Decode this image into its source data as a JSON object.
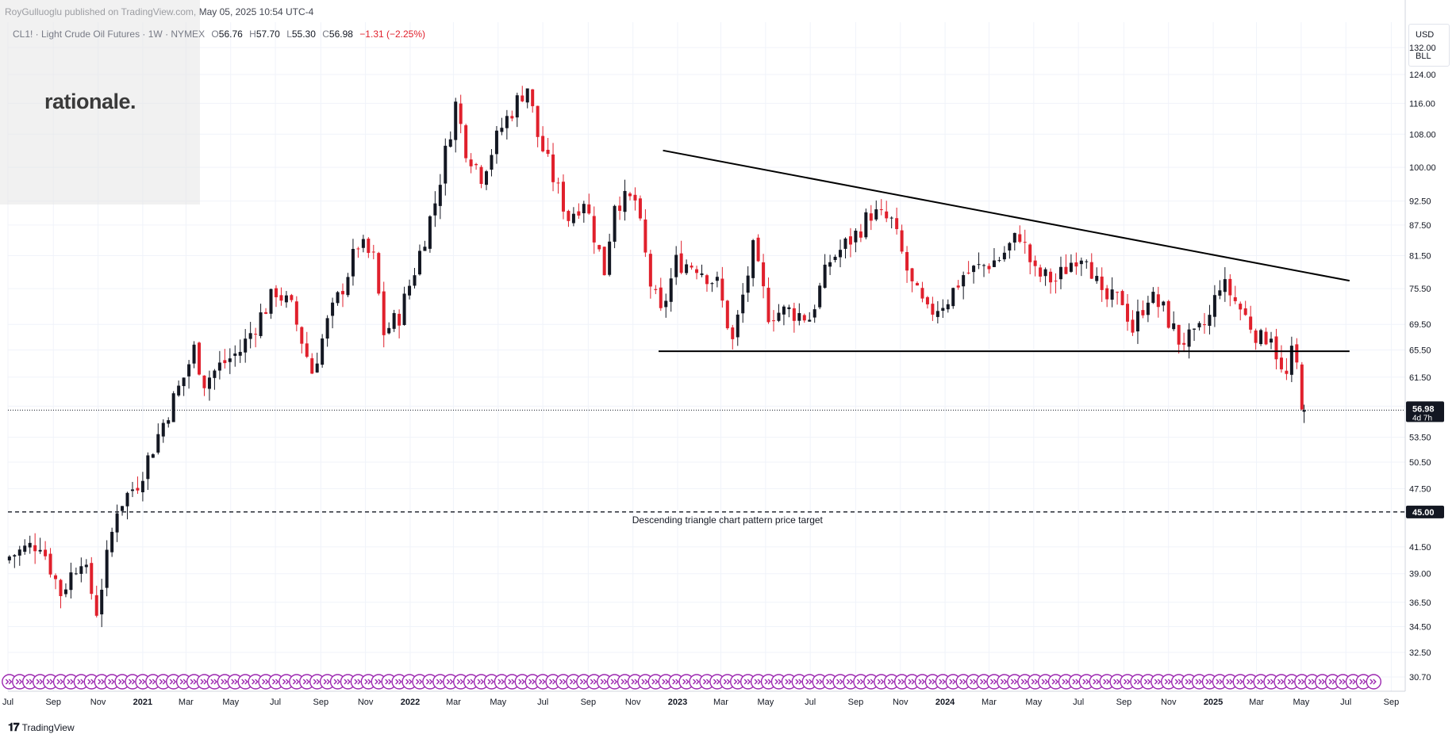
{
  "header": {
    "publisher": "RoyGulluoglu published on TradingView.com, May 05, 2025 10:54 UTC-4"
  },
  "legend": {
    "symbol": "CL1! · Light Crude Oil Futures · 1W · NYMEX",
    "open_label": "O",
    "open": "56.76",
    "high_label": "H",
    "high": "57.70",
    "low_label": "L",
    "low": "55.30",
    "close_label": "C",
    "close": "56.98",
    "change": "−1.31 (−2.25%)"
  },
  "logo": {
    "text": "rationale."
  },
  "price_scale": {
    "currency": "USD",
    "unit": "BLL"
  },
  "footer": {
    "brand": "TradingView"
  },
  "colors": {
    "up": "#131722",
    "down": "#e0202c",
    "grid": "#f0f3fa",
    "line": "#000000",
    "event_icon": "#9c27b0",
    "label_bg": "#131722"
  },
  "chart_data": {
    "type": "candlestick",
    "y_scale": "log",
    "ylim": [
      29.7,
      140
    ],
    "xlim": [
      "2020-07-01",
      "2025-09-20"
    ],
    "yticks": [
      "132.00",
      "124.00",
      "116.00",
      "108.00",
      "100.00",
      "92.50",
      "87.50",
      "81.50",
      "75.50",
      "69.50",
      "65.50",
      "61.50",
      "57.50",
      "53.50",
      "50.50",
      "47.50",
      "45.00",
      "41.50",
      "39.00",
      "36.50",
      "34.50",
      "32.50",
      "30.70"
    ],
    "xticks": [
      {
        "date": "2020-07-01",
        "label": "Jul",
        "bold": false
      },
      {
        "date": "2020-09-01",
        "label": "Sep",
        "bold": false
      },
      {
        "date": "2020-11-01",
        "label": "Nov",
        "bold": false
      },
      {
        "date": "2021-01-01",
        "label": "2021",
        "bold": true
      },
      {
        "date": "2021-03-01",
        "label": "Mar",
        "bold": false
      },
      {
        "date": "2021-05-01",
        "label": "May",
        "bold": false
      },
      {
        "date": "2021-07-01",
        "label": "Jul",
        "bold": false
      },
      {
        "date": "2021-09-01",
        "label": "Sep",
        "bold": false
      },
      {
        "date": "2021-11-01",
        "label": "Nov",
        "bold": false
      },
      {
        "date": "2022-01-01",
        "label": "2022",
        "bold": true
      },
      {
        "date": "2022-03-01",
        "label": "Mar",
        "bold": false
      },
      {
        "date": "2022-05-01",
        "label": "May",
        "bold": false
      },
      {
        "date": "2022-07-01",
        "label": "Jul",
        "bold": false
      },
      {
        "date": "2022-09-01",
        "label": "Sep",
        "bold": false
      },
      {
        "date": "2022-11-01",
        "label": "Nov",
        "bold": false
      },
      {
        "date": "2023-01-01",
        "label": "2023",
        "bold": true
      },
      {
        "date": "2023-03-01",
        "label": "Mar",
        "bold": false
      },
      {
        "date": "2023-05-01",
        "label": "May",
        "bold": false
      },
      {
        "date": "2023-07-01",
        "label": "Jul",
        "bold": false
      },
      {
        "date": "2023-09-01",
        "label": "Sep",
        "bold": false
      },
      {
        "date": "2023-11-01",
        "label": "Nov",
        "bold": false
      },
      {
        "date": "2024-01-01",
        "label": "2024",
        "bold": true
      },
      {
        "date": "2024-03-01",
        "label": "Mar",
        "bold": false
      },
      {
        "date": "2024-05-01",
        "label": "May",
        "bold": false
      },
      {
        "date": "2024-07-01",
        "label": "Jul",
        "bold": false
      },
      {
        "date": "2024-09-01",
        "label": "Sep",
        "bold": false
      },
      {
        "date": "2024-11-01",
        "label": "Nov",
        "bold": false
      },
      {
        "date": "2025-01-01",
        "label": "2025",
        "bold": true
      },
      {
        "date": "2025-03-01",
        "label": "Mar",
        "bold": false
      },
      {
        "date": "2025-05-01",
        "label": "May",
        "bold": false
      },
      {
        "date": "2025-07-01",
        "label": "Jul",
        "bold": false
      },
      {
        "date": "2025-09-01",
        "label": "Sep",
        "bold": false
      }
    ],
    "current_price": {
      "value": 56.98,
      "label": "56.98",
      "countdown": "4d 7h"
    },
    "target": {
      "value": 45.0,
      "label": "45.00",
      "annotation": "Descending triangle chart pattern price target"
    },
    "trendlines": [
      {
        "name": "descending-resistance",
        "style": "solid",
        "from": {
          "date": "2022-12-12",
          "value": 104.0
        },
        "to": {
          "date": "2025-07-06",
          "value": 76.9
        }
      },
      {
        "name": "horizontal-support",
        "style": "solid",
        "from": {
          "date": "2022-12-06",
          "value": 65.3
        },
        "to": {
          "date": "2025-07-06",
          "value": 65.3
        }
      }
    ],
    "event_markers": {
      "first_date": "2020-07-03",
      "last_date": "2025-08-17",
      "interval_days": 14
    },
    "anchors": [
      {
        "date": "2020-07-03",
        "close": 40.6
      },
      {
        "date": "2020-08-14",
        "close": 42.0
      },
      {
        "date": "2020-09-11",
        "close": 37.3
      },
      {
        "date": "2020-10-09",
        "close": 40.6
      },
      {
        "date": "2020-10-30",
        "close": 35.8
      },
      {
        "date": "2020-11-27",
        "close": 45.5
      },
      {
        "date": "2020-12-25",
        "close": 48.2
      },
      {
        "date": "2021-01-15",
        "close": 52.3
      },
      {
        "date": "2021-02-05",
        "close": 56.9
      },
      {
        "date": "2021-02-26",
        "close": 61.5
      },
      {
        "date": "2021-03-12",
        "close": 65.6
      },
      {
        "date": "2021-03-26",
        "close": 60.9
      },
      {
        "date": "2021-04-16",
        "close": 63.1
      },
      {
        "date": "2021-05-14",
        "close": 65.4
      },
      {
        "date": "2021-06-11",
        "close": 70.9
      },
      {
        "date": "2021-07-02",
        "close": 75.2
      },
      {
        "date": "2021-07-23",
        "close": 72.1
      },
      {
        "date": "2021-08-20",
        "close": 62.3
      },
      {
        "date": "2021-09-10",
        "close": 69.7
      },
      {
        "date": "2021-10-01",
        "close": 75.9
      },
      {
        "date": "2021-10-22",
        "close": 83.8
      },
      {
        "date": "2021-11-12",
        "close": 80.8
      },
      {
        "date": "2021-11-26",
        "close": 68.2
      },
      {
        "date": "2021-12-17",
        "close": 70.9
      },
      {
        "date": "2022-01-07",
        "close": 78.9
      },
      {
        "date": "2022-02-04",
        "close": 92.3
      },
      {
        "date": "2022-03-04",
        "close": 115.7
      },
      {
        "date": "2022-03-18",
        "close": 104.7
      },
      {
        "date": "2022-04-08",
        "close": 98.3
      },
      {
        "date": "2022-05-06",
        "close": 109.8
      },
      {
        "date": "2022-06-03",
        "close": 118.9
      },
      {
        "date": "2022-06-10",
        "close": 120.7
      },
      {
        "date": "2022-06-24",
        "close": 107.6
      },
      {
        "date": "2022-07-15",
        "close": 97.6
      },
      {
        "date": "2022-08-05",
        "close": 89.0
      },
      {
        "date": "2022-08-26",
        "close": 93.1
      },
      {
        "date": "2022-09-23",
        "close": 78.7
      },
      {
        "date": "2022-10-07",
        "close": 92.6
      },
      {
        "date": "2022-11-04",
        "close": 92.6
      },
      {
        "date": "2022-11-25",
        "close": 76.3
      },
      {
        "date": "2022-12-09",
        "close": 71.0
      },
      {
        "date": "2022-12-30",
        "close": 80.3
      },
      {
        "date": "2023-01-27",
        "close": 79.7
      },
      {
        "date": "2023-02-24",
        "close": 76.3
      },
      {
        "date": "2023-03-17",
        "close": 66.7
      },
      {
        "date": "2023-04-14",
        "close": 82.5
      },
      {
        "date": "2023-05-05",
        "close": 71.3
      },
      {
        "date": "2023-06-02",
        "close": 71.7
      },
      {
        "date": "2023-06-30",
        "close": 70.6
      },
      {
        "date": "2023-07-28",
        "close": 80.6
      },
      {
        "date": "2023-09-01",
        "close": 85.6
      },
      {
        "date": "2023-09-22",
        "close": 90.0
      },
      {
        "date": "2023-10-20",
        "close": 88.1
      },
      {
        "date": "2023-11-17",
        "close": 75.9
      },
      {
        "date": "2023-12-08",
        "close": 71.2
      },
      {
        "date": "2024-01-05",
        "close": 73.8
      },
      {
        "date": "2024-01-26",
        "close": 78.0
      },
      {
        "date": "2024-02-16",
        "close": 79.2
      },
      {
        "date": "2024-03-15",
        "close": 81.0
      },
      {
        "date": "2024-04-12",
        "close": 85.7
      },
      {
        "date": "2024-05-03",
        "close": 78.1
      },
      {
        "date": "2024-05-31",
        "close": 76.9
      },
      {
        "date": "2024-06-28",
        "close": 81.5
      },
      {
        "date": "2024-07-12",
        "close": 82.2
      },
      {
        "date": "2024-08-02",
        "close": 73.5
      },
      {
        "date": "2024-08-30",
        "close": 73.6
      },
      {
        "date": "2024-09-13",
        "close": 68.7
      },
      {
        "date": "2024-10-04",
        "close": 74.4
      },
      {
        "date": "2024-10-25",
        "close": 71.8
      },
      {
        "date": "2024-11-15",
        "close": 67.0
      },
      {
        "date": "2024-12-06",
        "close": 67.2
      },
      {
        "date": "2024-12-27",
        "close": 70.6
      },
      {
        "date": "2025-01-10",
        "close": 76.6
      },
      {
        "date": "2025-01-24",
        "close": 74.7
      },
      {
        "date": "2025-02-14",
        "close": 70.7
      },
      {
        "date": "2025-03-07",
        "close": 67.0
      },
      {
        "date": "2025-03-21",
        "close": 68.3
      },
      {
        "date": "2025-04-04",
        "close": 61.99
      },
      {
        "date": "2025-04-11",
        "close": 61.5
      },
      {
        "date": "2025-04-18",
        "close": 64.7
      },
      {
        "date": "2025-04-25",
        "close": 63.0
      },
      {
        "date": "2025-05-02",
        "close": 58.3
      },
      {
        "date": "2025-05-05",
        "open": 56.76,
        "high": 57.7,
        "low": 55.3,
        "close": 56.98
      }
    ]
  }
}
